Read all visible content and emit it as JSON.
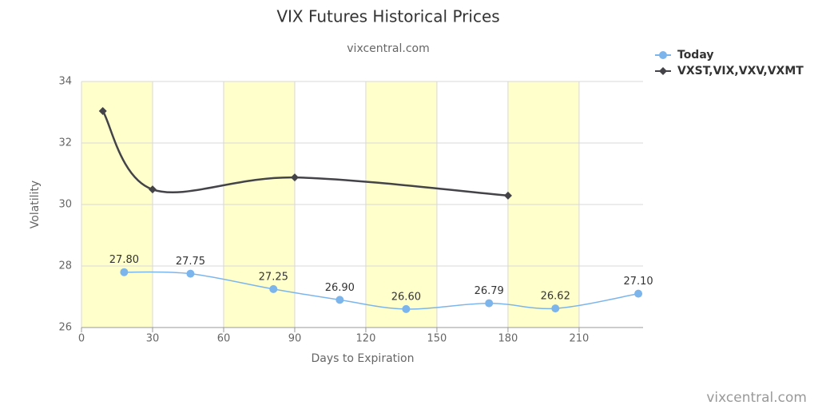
{
  "chart_data": {
    "type": "line",
    "title": "VIX Futures Historical Prices",
    "subtitle": "vixcentral.com",
    "credits": "vixcentral.com",
    "x_label": "Days to Expiration",
    "y_label": "Volatility",
    "xlim": [
      0,
      237
    ],
    "xticks": [
      0,
      30,
      60,
      90,
      120,
      150,
      180,
      210
    ],
    "ylim": [
      26,
      34
    ],
    "yticks": [
      26,
      28,
      30,
      32,
      34
    ],
    "grid": true,
    "legend": "top-right",
    "shaded_bands": [
      [
        0,
        30
      ],
      [
        60,
        90
      ],
      [
        120,
        150
      ],
      [
        180,
        210
      ]
    ],
    "band_color": "#ffffcc",
    "series": [
      {
        "name": "Today",
        "color": "#7cb5ec",
        "marker": "circle",
        "x": [
          18,
          46,
          81,
          109,
          137,
          172,
          200,
          235
        ],
        "values": [
          27.8,
          27.75,
          27.25,
          26.9,
          26.6,
          26.79,
          26.62,
          27.1
        ],
        "value_labels": [
          "27.80",
          "27.75",
          "27.25",
          "26.90",
          "26.60",
          "26.79",
          "26.62",
          "27.10"
        ]
      },
      {
        "name": "VXST,VIX,VXV,VXMT",
        "color": "#434348",
        "marker": "diamond",
        "x": [
          9,
          30,
          90,
          180
        ],
        "values": [
          33.04,
          30.49,
          30.88,
          30.29
        ]
      }
    ]
  }
}
